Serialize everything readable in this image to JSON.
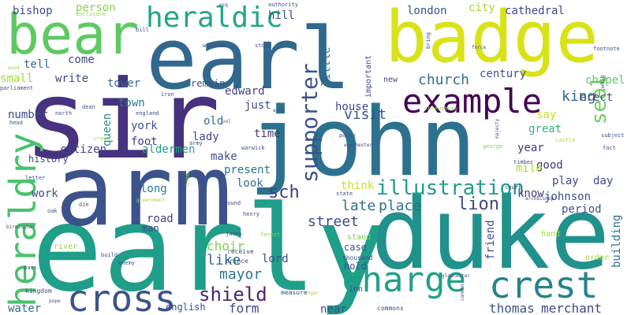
{
  "background": "#ffffff",
  "palette": {
    "dark-purple": "#440154",
    "indigo": "#472d7b",
    "slate-blue": "#3b528b",
    "steel-blue": "#2c728e",
    "teal": "#21918c",
    "sea-green": "#28ae80",
    "green": "#5ec962",
    "lime": "#addc30",
    "yellow": "#e5e419"
  },
  "words": [
    {
      "text": "early",
      "color": "#1f9e89"
    },
    {
      "text": "sir",
      "color": "#46327e"
    },
    {
      "text": "arm",
      "color": "#3b528b"
    },
    {
      "text": "john",
      "color": "#2c728e"
    },
    {
      "text": "duke",
      "color": "#21918c"
    },
    {
      "text": "earl",
      "color": "#31688e"
    },
    {
      "text": "badge",
      "color": "#d8e219"
    },
    {
      "text": "bear",
      "color": "#5ec962"
    },
    {
      "text": "heraldry",
      "color": "#4ac16d"
    },
    {
      "text": "cross",
      "color": "#3b528b"
    },
    {
      "text": "charge",
      "color": "#1fa187"
    },
    {
      "text": "crest",
      "color": "#26828e"
    },
    {
      "text": "example",
      "color": "#440154"
    },
    {
      "text": "heraldic",
      "color": "#21a685"
    },
    {
      "text": "supporter",
      "color": "#3b528b"
    },
    {
      "text": "illustration",
      "color": "#1f9e89"
    },
    {
      "text": "shield",
      "color": "#482475"
    },
    {
      "text": "sch",
      "color": "#433e85"
    },
    {
      "text": "lion",
      "color": "#3e4a89"
    },
    {
      "text": "seal",
      "color": "#6ece58"
    },
    {
      "text": "church",
      "color": "#2d708e"
    },
    {
      "text": "visit",
      "color": "#39558c"
    },
    {
      "text": "street",
      "color": "#3e4989"
    },
    {
      "text": "late",
      "color": "#2c728e"
    },
    {
      "text": "place",
      "color": "#2c728e"
    },
    {
      "text": "choir",
      "color": "#7ad151"
    },
    {
      "text": "mayor",
      "color": "#2a788e"
    },
    {
      "text": "like",
      "color": "#2f6c8e"
    },
    {
      "text": "king",
      "color": "#31688e"
    },
    {
      "text": "thomas",
      "color": "#3b528b"
    },
    {
      "text": "merchant",
      "color": "#404688"
    },
    {
      "text": "form",
      "color": "#3f4788"
    },
    {
      "text": "bishop",
      "color": "#3e4c8a"
    },
    {
      "text": "person",
      "color": "#86d549"
    },
    {
      "text": "hill",
      "color": "#3e4c8a"
    },
    {
      "text": "london",
      "color": "#3b528b"
    },
    {
      "text": "city",
      "color": "#a5db36"
    },
    {
      "text": "cathedral",
      "color": "#3e4989"
    },
    {
      "text": "tell",
      "color": "#306a8e"
    },
    {
      "text": "come",
      "color": "#3e4a89"
    },
    {
      "text": "write",
      "color": "#3e4c8a"
    },
    {
      "text": "small",
      "color": "#9fda3a"
    },
    {
      "text": "tower",
      "color": "#306a8e"
    },
    {
      "text": "town",
      "color": "#2a788e"
    },
    {
      "text": "queen",
      "color": "#23898e"
    },
    {
      "text": "edward",
      "color": "#404387"
    },
    {
      "text": "just",
      "color": "#3e4c8a"
    },
    {
      "text": "house",
      "color": "#3f4788"
    },
    {
      "text": "century",
      "color": "#3b528b"
    },
    {
      "text": "chapel",
      "color": "#5ec962"
    },
    {
      "text": "erect",
      "color": "#3f4788"
    },
    {
      "text": "say",
      "color": "#c2df23"
    },
    {
      "text": "great",
      "color": "#2fb47c"
    },
    {
      "text": "year",
      "color": "#463480"
    },
    {
      "text": "old",
      "color": "#2c728e"
    },
    {
      "text": "lady",
      "color": "#3f4788"
    },
    {
      "text": "time",
      "color": "#46337f"
    },
    {
      "text": "york",
      "color": "#3b528b"
    },
    {
      "text": "foot",
      "color": "#433e85"
    },
    {
      "text": "number",
      "color": "#3e4a89"
    },
    {
      "text": "citizen",
      "color": "#3f4788"
    },
    {
      "text": "aldermen",
      "color": "#1fa187"
    },
    {
      "text": "make",
      "color": "#3e4c8a"
    },
    {
      "text": "present",
      "color": "#2c728e"
    },
    {
      "text": "look",
      "color": "#306a8e"
    },
    {
      "text": "think",
      "color": "#cae11f"
    },
    {
      "text": "know",
      "color": "#443983"
    },
    {
      "text": "good",
      "color": "#46337f"
    },
    {
      "text": "mile",
      "color": "#a5db36"
    },
    {
      "text": "play",
      "color": "#3e4a89"
    },
    {
      "text": "day",
      "color": "#3e4a89"
    },
    {
      "text": "johnson",
      "color": "#3e4c8a"
    },
    {
      "text": "friend",
      "color": "#3e4c8a"
    },
    {
      "text": "period",
      "color": "#3b528b"
    },
    {
      "text": "building",
      "color": "#2c728e"
    },
    {
      "text": "long",
      "color": "#2a788e"
    },
    {
      "text": "road",
      "color": "#414487"
    },
    {
      "text": "man",
      "color": "#3e4a89"
    },
    {
      "text": "history",
      "color": "#3e4c8a"
    },
    {
      "text": "work",
      "color": "#3e4c8a"
    },
    {
      "text": "water",
      "color": "#31688e"
    },
    {
      "text": "english",
      "color": "#3e4c8a"
    },
    {
      "text": "near",
      "color": "#3e4c8a"
    },
    {
      "text": "lord",
      "color": "#3e4c8a"
    },
    {
      "text": "case",
      "color": "#3e4c8a"
    },
    {
      "text": "hold",
      "color": "#3e4c8a"
    },
    {
      "text": "stand",
      "color": "#7ad151"
    },
    {
      "text": "little",
      "color": "#2a788e"
    },
    {
      "text": "important",
      "color": "#3e4c8a"
    },
    {
      "text": "remain",
      "color": "#3e4c8a"
    },
    {
      "text": "new",
      "color": "#3e4c8a"
    },
    {
      "text": "hand",
      "color": "#a0da39"
    },
    {
      "text": "order",
      "color": "#a0da39"
    },
    {
      "text": "river",
      "color": "#8bd646"
    },
    {
      "text": "prince",
      "color": "#3e4c8a"
    },
    {
      "text": "receive",
      "color": "#3e4c8a"
    },
    {
      "text": "thousand",
      "color": "#3e4c8a"
    },
    {
      "text": "measure",
      "color": "#3e4c8a"
    },
    {
      "text": "inn",
      "color": "#3e4c8a"
    },
    {
      "text": "commons",
      "color": "#3e4c8a"
    },
    {
      "text": "kingdom",
      "color": "#3e4c8a"
    },
    {
      "text": "enclosure",
      "color": "#8bd646"
    },
    {
      "text": "authority",
      "color": "#3e4c8a"
    },
    {
      "text": "bill",
      "color": "#3e4c8a"
    },
    {
      "text": "william",
      "color": "#3e4c8a"
    },
    {
      "text": "stone",
      "color": "#3e4c8a"
    },
    {
      "text": "footnote",
      "color": "#3e4c8a"
    },
    {
      "text": "bring",
      "color": "#3e4c8a"
    },
    {
      "text": "parliament",
      "color": "#3e4c8a"
    },
    {
      "text": "wood",
      "color": "#8bd646"
    },
    {
      "text": "head",
      "color": "#3e4c8a"
    },
    {
      "text": "north",
      "color": "#3e4c8a"
    },
    {
      "text": "dean",
      "color": "#3e4c8a"
    },
    {
      "text": "england",
      "color": "#3e4c8a"
    },
    {
      "text": "iron",
      "color": "#3e4c8a"
    },
    {
      "text": "whig",
      "color": "#3e4c8a"
    },
    {
      "text": "shrewsbury",
      "color": "#8bd646"
    },
    {
      "text": "subject",
      "color": "#3e4c8a"
    },
    {
      "text": "fact",
      "color": "#3e4c8a"
    },
    {
      "text": "castle",
      "color": "#a0da39"
    },
    {
      "text": "party",
      "color": "#3e4c8a"
    },
    {
      "text": "warwick",
      "color": "#3e4c8a"
    },
    {
      "text": "winchester",
      "color": "#3e4c8a"
    },
    {
      "text": "army",
      "color": "#3e4c8a"
    },
    {
      "text": "crown",
      "color": "#a0da39"
    },
    {
      "text": "letter",
      "color": "#3e4c8a"
    },
    {
      "text": "timber",
      "color": "#3e4c8a"
    },
    {
      "text": "court",
      "color": "#3e4c8a"
    },
    {
      "text": "george",
      "color": "#8bd646"
    },
    {
      "text": "state",
      "color": "#3e4c8a"
    },
    {
      "text": "oak",
      "color": "#3e4c8a"
    },
    {
      "text": "die",
      "color": "#3e4c8a"
    },
    {
      "text": "government",
      "color": "#a0da39"
    },
    {
      "text": "pound",
      "color": "#3e4c8a"
    },
    {
      "text": "james",
      "color": "#3e4c8a"
    },
    {
      "text": "forest",
      "color": "#8bd646"
    },
    {
      "text": "enemy",
      "color": "#3e4c8a"
    },
    {
      "text": "build",
      "color": "#3e4c8a"
    },
    {
      "text": "pass",
      "color": "#3e4c8a"
    },
    {
      "text": "gloucester",
      "color": "#3e4c8a"
    },
    {
      "text": "archbishop",
      "color": "#3e4c8a"
    },
    {
      "text": "common",
      "color": "#3e4c8a"
    },
    {
      "text": "pope",
      "color": "#3e4c8a"
    },
    {
      "text": "henry",
      "color": "#3e4c8a"
    },
    {
      "text": "tree",
      "color": "#8bd646"
    },
    {
      "text": "birmingham",
      "color": "#3e4c8a"
    },
    {
      "text": "vol",
      "color": "#3e4c8a"
    },
    {
      "text": "acre",
      "color": "#3e4c8a"
    },
    {
      "text": "force",
      "color": "#3e4c8a"
    },
    {
      "text": "majesty",
      "color": "#3e4c8a"
    },
    {
      "text": "roger",
      "color": "#a0da39"
    },
    {
      "text": "esq",
      "color": "#3e4c8a"
    }
  ]
}
